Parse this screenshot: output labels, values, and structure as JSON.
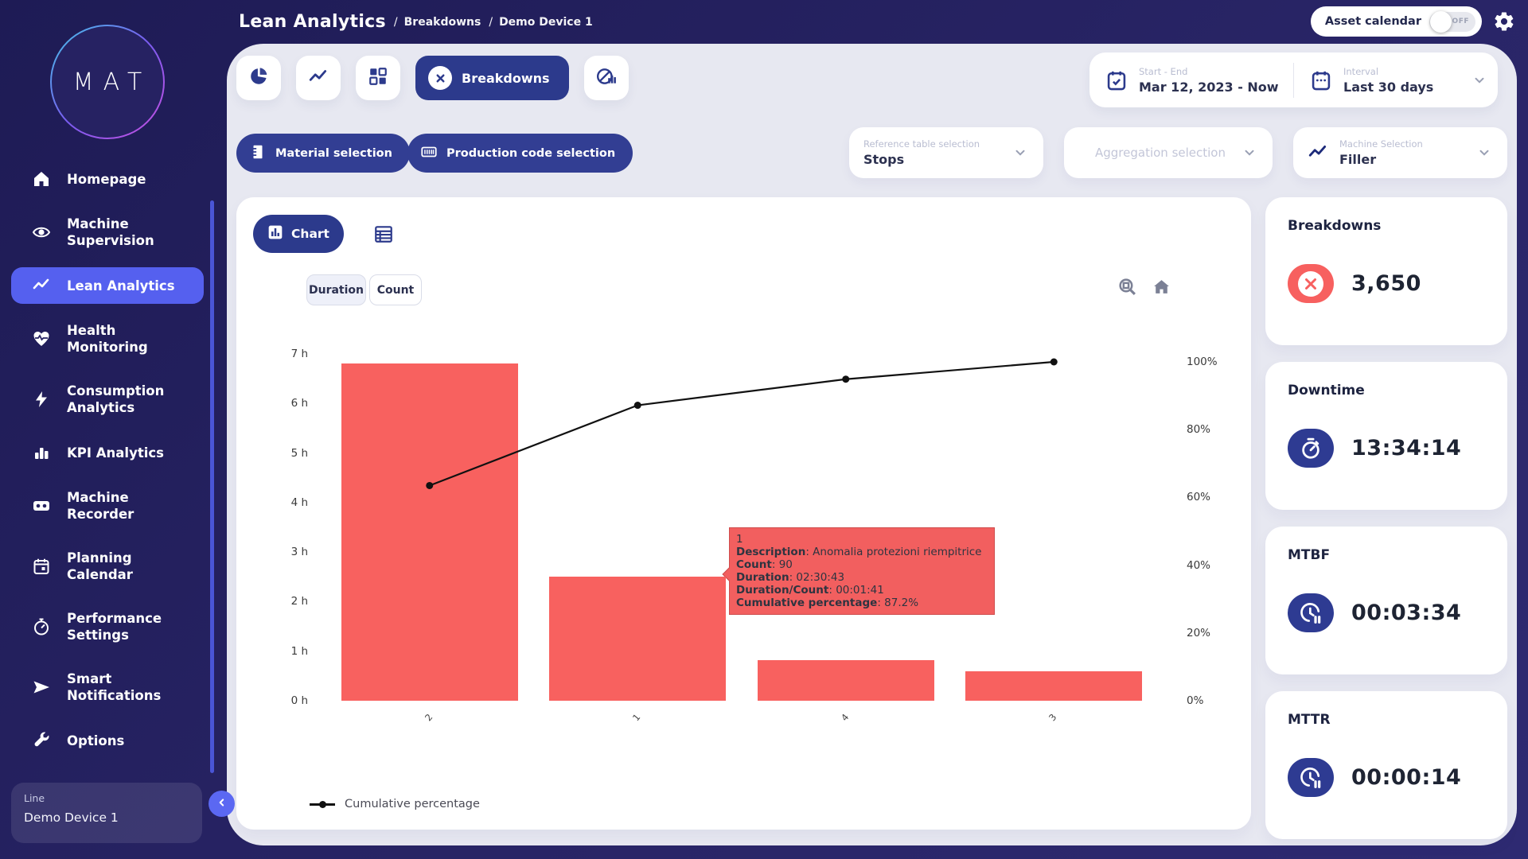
{
  "header": {
    "title": "Lean Analytics",
    "breadcrumbs": [
      "Breakdowns",
      "Demo Device 1"
    ],
    "asset_calendar": {
      "label": "Asset calendar",
      "state": "OFF"
    },
    "icons": [
      "toggle-off",
      "gear-icon"
    ]
  },
  "sidebar": {
    "logo": "MAT",
    "items": [
      {
        "label": "Homepage",
        "icon": "home-icon",
        "active": false
      },
      {
        "label": "Machine Supervision",
        "icon": "eye-icon",
        "active": false
      },
      {
        "label": "Lean Analytics",
        "icon": "trend-icon",
        "active": true
      },
      {
        "label": "Health Monitoring",
        "icon": "heart-pulse-icon",
        "active": false
      },
      {
        "label": "Consumption Analytics",
        "icon": "bolt-icon",
        "active": false
      },
      {
        "label": "KPI Analytics",
        "icon": "bar-chart-icon",
        "active": false
      },
      {
        "label": "Machine Recorder",
        "icon": "recorder-icon",
        "active": false
      },
      {
        "label": "Planning Calendar",
        "icon": "calendar-icon",
        "active": false
      },
      {
        "label": "Performance Settings",
        "icon": "gauge-icon",
        "active": false
      },
      {
        "label": "Smart Notifications",
        "icon": "send-icon",
        "active": false
      },
      {
        "label": "Options",
        "icon": "wrench-icon",
        "active": false
      }
    ],
    "device": {
      "label": "Line",
      "value": "Demo Device 1"
    }
  },
  "toolbar": {
    "tabs": [
      {
        "icon": "pie-chart-icon"
      },
      {
        "icon": "line-chart-icon"
      },
      {
        "icon": "grid-icon"
      },
      {
        "icon": "circle-x-icon",
        "label": "Breakdowns",
        "active": true
      },
      {
        "icon": "no-production-icon"
      }
    ],
    "date_range": {
      "label": "Start - End",
      "value": "Mar 12, 2023 - Now",
      "icon": "calendar-check-icon"
    },
    "interval": {
      "label": "Interval",
      "value": "Last 30 days",
      "icon": "calendar-dots-icon"
    }
  },
  "filters": {
    "material_label": "Material selection",
    "production_label": "Production code selection",
    "reference": {
      "label": "Reference table selection",
      "value": "Stops"
    },
    "aggregation": {
      "placeholder": "Aggregation selection"
    },
    "machine": {
      "label": "Machine Selection",
      "value": "Filler",
      "icon": "trend-icon"
    }
  },
  "chart_card": {
    "chart_button": "Chart",
    "duration_button": "Duration",
    "count_button": "Count",
    "legend": "Cumulative percentage",
    "modebar_icons": [
      "zoom-box-icon",
      "home-icon"
    ]
  },
  "tooltip": {
    "title": "1",
    "rows": [
      {
        "label": "Description",
        "value": "Anomalia protezioni riempitrice"
      },
      {
        "label": "Count",
        "value": "90"
      },
      {
        "label": "Duration",
        "value": "02:30:43"
      },
      {
        "label": "Duration/Count",
        "value": "00:01:41"
      },
      {
        "label": "Cumulative percentage",
        "value": "87.2%"
      }
    ]
  },
  "chart_data": {
    "type": "bar",
    "subtype": "pareto",
    "categories": [
      "2",
      "1",
      "4",
      "3"
    ],
    "series": [
      {
        "name": "Duration (hours)",
        "type": "bar",
        "values": [
          6.8,
          2.51,
          0.82,
          0.6
        ]
      },
      {
        "name": "Cumulative percentage",
        "type": "line",
        "values": [
          63.5,
          87.2,
          94.9,
          100
        ]
      }
    ],
    "y_left_ticks": [
      "0 h",
      "1 h",
      "2 h",
      "3 h",
      "4 h",
      "5 h",
      "6 h",
      "7 h"
    ],
    "y_left_max": 7,
    "y_right_ticks": [
      "0%",
      "20%",
      "40%",
      "60%",
      "80%",
      "100%"
    ],
    "y_right_max": 100,
    "bar_color": "#f8615f",
    "line_color": "#111111",
    "grid": false,
    "legend_position": "bottom-left"
  },
  "stats": [
    {
      "title": "Breakdowns",
      "value": "3,650",
      "icon": "circle-x-icon",
      "accent": "#f7605f"
    },
    {
      "title": "Downtime",
      "value": "13:34:14",
      "icon": "stopwatch-icon",
      "accent": "#2e3b92"
    },
    {
      "title": "MTBF",
      "value": "00:03:34",
      "icon": "clock-pause-icon",
      "accent": "#2e3b92"
    },
    {
      "title": "MTTR",
      "value": "00:00:14",
      "icon": "clock-pause-icon",
      "accent": "#2e3b92"
    }
  ],
  "colors": {
    "background": "#262262",
    "panel": "#e7e8f1",
    "primary": "#2c3a8c",
    "active_nav": "#5560ef",
    "red": "#f7605f"
  }
}
